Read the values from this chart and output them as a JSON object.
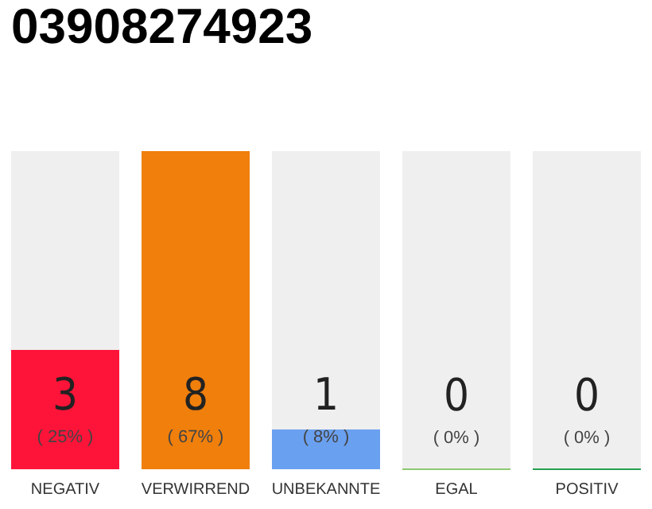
{
  "chart_data": {
    "type": "bar",
    "title": "03908274923",
    "categories": [
      "NEGATIV",
      "VERWIRREND",
      "UNBEKANNTE",
      "EGAL",
      "POSITIV"
    ],
    "values": [
      3,
      8,
      1,
      0,
      0
    ],
    "value_labels": [
      "3\n( 25% )",
      "8\n( 67% )",
      "1\n( 8% )",
      "0\n( 0% )",
      "0\n( 0% )"
    ],
    "colors": [
      "#ff1439",
      "#f07f0c",
      "#6aa0f0",
      "#8cc870",
      "#28a050"
    ],
    "tick_labels": "x"
  }
}
